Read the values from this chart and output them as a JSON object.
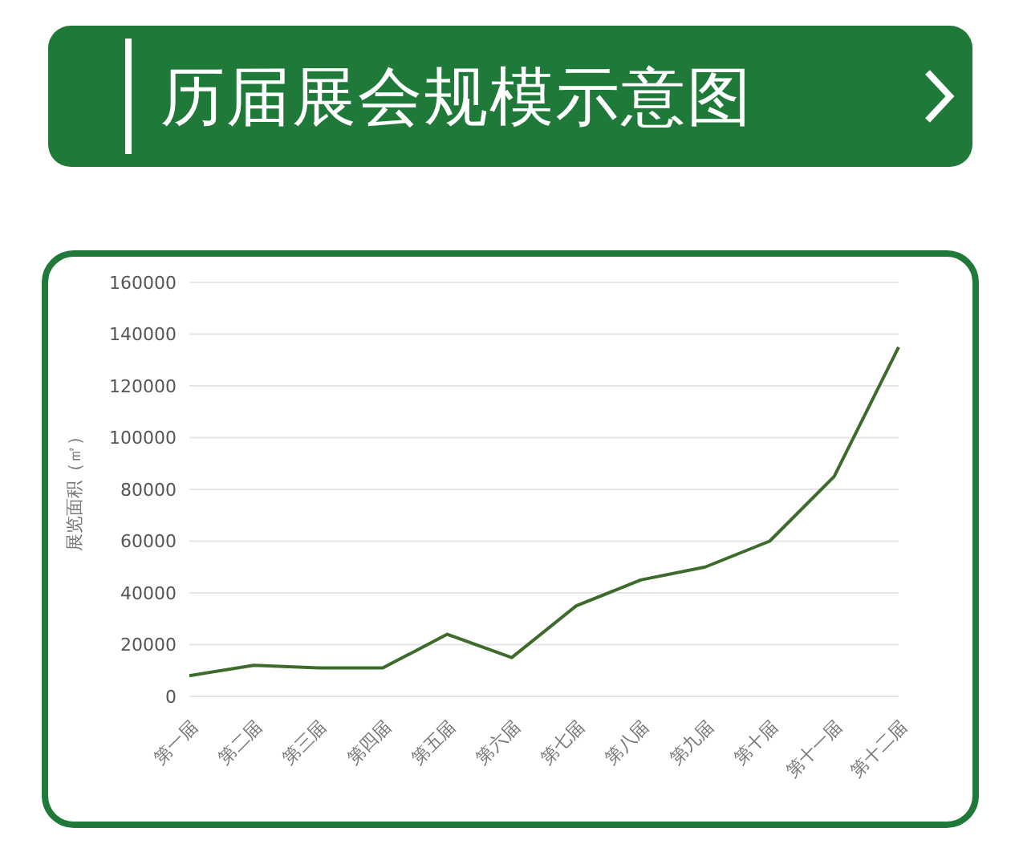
{
  "chart_data": {
    "type": "line",
    "title": "历届展会规模示意图",
    "ylabel": "展览面积（㎡）",
    "categories": [
      "第一届",
      "第二届",
      "第三届",
      "第四届",
      "第五届",
      "第六届",
      "第七届",
      "第八届",
      "第九届",
      "第十届",
      "第十一届",
      "第十二届"
    ],
    "series": [
      {
        "color": "#3d6b2c",
        "values": [
          8000,
          12000,
          11000,
          11000,
          24000,
          15000,
          35000,
          45000,
          50000,
          60000,
          85000,
          135000
        ]
      }
    ],
    "ylim": [
      0,
      160000
    ],
    "yticks": [
      0,
      20000,
      40000,
      60000,
      80000,
      100000,
      120000,
      140000,
      160000
    ],
    "grid": "y",
    "legend": false,
    "marker": "none",
    "line_style": "solid"
  }
}
